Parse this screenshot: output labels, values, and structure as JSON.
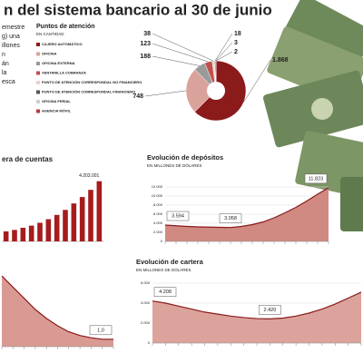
{
  "page": {
    "title": "n del sistema bancario al 30 de junio",
    "intro_lines": [
      "emestre",
      "g) una",
      "illones",
      "n",
      "án",
      "la",
      "esca"
    ]
  },
  "chart_data": [
    {
      "type": "pie",
      "title": "Puntos de atención",
      "subtitle": "EN CANTIDAD",
      "categories": [
        "CAJERO AUTOMÁTICO",
        "OFICINA",
        "OFICINA EXTERNA",
        "VENTANILLA COBRANZA",
        "PUNTO DE ATENCIÓN CORRESPONDAL NO FINANCIERO",
        "PUNTO DE ATENCIÓN CORRESPONDAL FINANCIERO",
        "OFICINA FERIAL",
        "AGENCIA MÓVIL"
      ],
      "values": [
        1868,
        748,
        188,
        123,
        38,
        18,
        3,
        2
      ],
      "value_labels": [
        "1.868",
        "748",
        "188",
        "123",
        "38",
        "18",
        "3",
        "2"
      ],
      "colors": [
        "#8b1a1a",
        "#d9a39c",
        "#9a9a9a",
        "#c0504d",
        "#ead0cc",
        "#555555",
        "#cfcfcf",
        "#b33a3a"
      ]
    },
    {
      "type": "bar",
      "title": "era de cuentas",
      "categories": [
        null,
        null,
        null,
        null,
        null,
        null,
        null,
        null,
        null,
        null,
        null,
        null
      ],
      "values": [
        700000,
        800000,
        950000,
        1100000,
        1300000,
        1550000,
        1850000,
        2200000,
        2650000,
        3100000,
        3600000,
        4203001
      ],
      "value_labels": [
        null,
        null,
        null,
        null,
        null,
        null,
        null,
        null,
        null,
        null,
        null,
        "4.203.001"
      ],
      "color": "#a61c1c",
      "ylim": [
        0,
        4500000
      ]
    },
    {
      "type": "area",
      "title": "Evolución de depósitos",
      "subtitle": "EN MILLONES DE DÓLARES",
      "categories": [
        null,
        null,
        null,
        null,
        null,
        null,
        null,
        null,
        null,
        null,
        null,
        null,
        null,
        null,
        null,
        null
      ],
      "values": [
        3594,
        3450,
        3300,
        3200,
        3150,
        3100,
        3058,
        3300,
        3700,
        4300,
        5200,
        6300,
        7500,
        8900,
        10400,
        11823
      ],
      "value_labels": [
        "3.594",
        null,
        null,
        null,
        null,
        null,
        "3.058",
        null,
        null,
        null,
        null,
        null,
        null,
        null,
        null,
        "11.823"
      ],
      "color": "#8b1a1a",
      "fill": "#d08a82",
      "ylim": [
        0,
        12000
      ],
      "yticks": [
        0,
        {
          "value": 2000,
          "label": "2.000"
        },
        {
          "value": 4000,
          "label": "4.000"
        },
        {
          "value": 6000,
          "label": "6.000"
        },
        {
          "value": 8000,
          "label": "8.000"
        },
        {
          "value": 10000,
          "label": "10.000"
        },
        {
          "value": 12000,
          "label": "12.000"
        }
      ]
    },
    {
      "type": "area",
      "title": "Evolución de cartera",
      "subtitle": "EN MILLONES DE DÓLARES",
      "categories": [
        null,
        null,
        null,
        null,
        null,
        null,
        null,
        null,
        null,
        null,
        null,
        null,
        null,
        null,
        null,
        null,
        null
      ],
      "values": [
        4208,
        4000,
        3700,
        3400,
        3100,
        2900,
        2700,
        2550,
        2450,
        2420,
        2500,
        2700,
        3000,
        3400,
        3900,
        4500,
        5100
      ],
      "value_labels": [
        "4.208",
        null,
        null,
        null,
        null,
        null,
        null,
        null,
        null,
        "2.420",
        null,
        null,
        null,
        null,
        null,
        null,
        null
      ],
      "color": "#8b1a1a",
      "fill": "#dba39c",
      "ylim": [
        0,
        6000
      ],
      "yticks": [
        0,
        {
          "value": 2000,
          "label": "2.000"
        },
        {
          "value": 4000,
          "label": "4.000"
        },
        {
          "value": 6000,
          "label": "6.000"
        }
      ]
    },
    {
      "type": "area",
      "categories": [
        null,
        null,
        null,
        null,
        null,
        null,
        null,
        null,
        null,
        null,
        null
      ],
      "values": [
        9.5,
        8,
        6.5,
        5,
        3.8,
        2.8,
        2,
        1.5,
        1.2,
        1.0,
        1.0
      ],
      "value_labels": [
        null,
        null,
        null,
        null,
        null,
        null,
        null,
        null,
        null,
        "1,0",
        null
      ],
      "color": "#8b1a1a",
      "fill": "#d89a92",
      "ylim": [
        0,
        10
      ]
    }
  ]
}
